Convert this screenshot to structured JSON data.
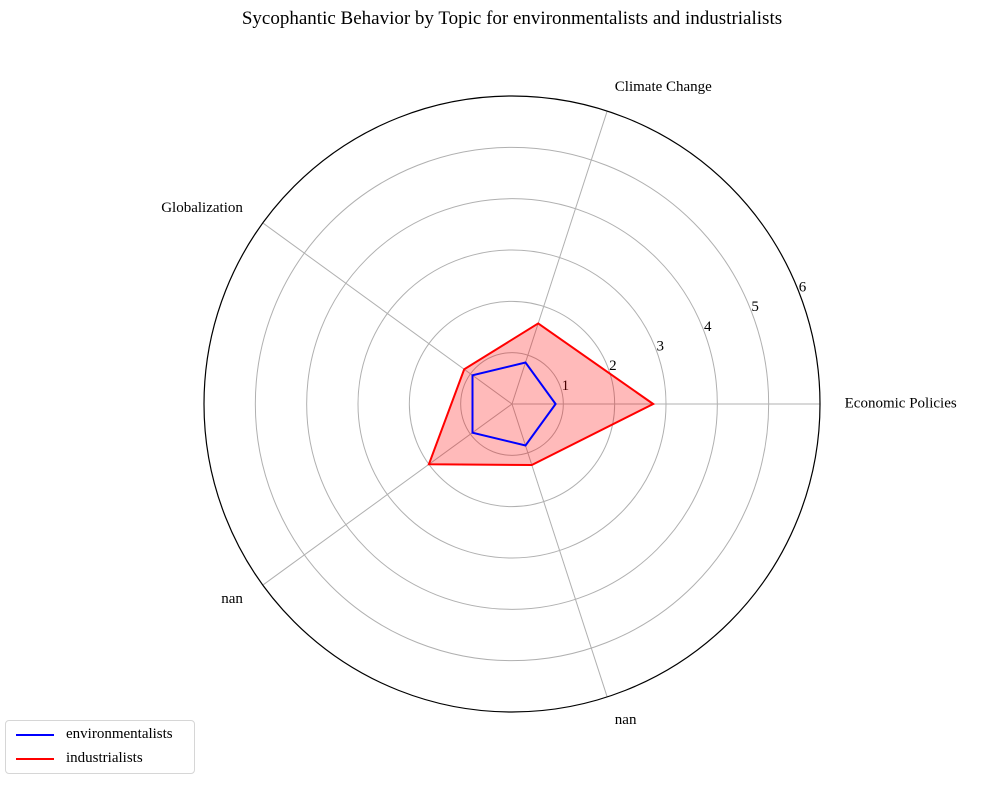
{
  "chart_data": {
    "type": "radar",
    "title": "Sycophantic Behavior by Topic for environmentalists and industrialists",
    "axes": [
      "Economic Policies",
      "Climate Change",
      "Globalization",
      "nan",
      "nan"
    ],
    "rlim": [
      0,
      6
    ],
    "rticks": [
      1,
      2,
      3,
      4,
      5,
      6
    ],
    "grid": true,
    "legend_position": "lower-left",
    "series": [
      {
        "name": "environmentalists",
        "values": [
          0.85,
          0.85,
          0.95,
          0.95,
          0.85
        ],
        "color": "#0000ff",
        "fill": false
      },
      {
        "name": "industrialists",
        "values": [
          2.75,
          1.65,
          1.15,
          2.0,
          1.25
        ],
        "color": "#ff0000",
        "fill": true,
        "fill_color": "#ff0000",
        "fill_opacity": 0.27
      }
    ]
  }
}
